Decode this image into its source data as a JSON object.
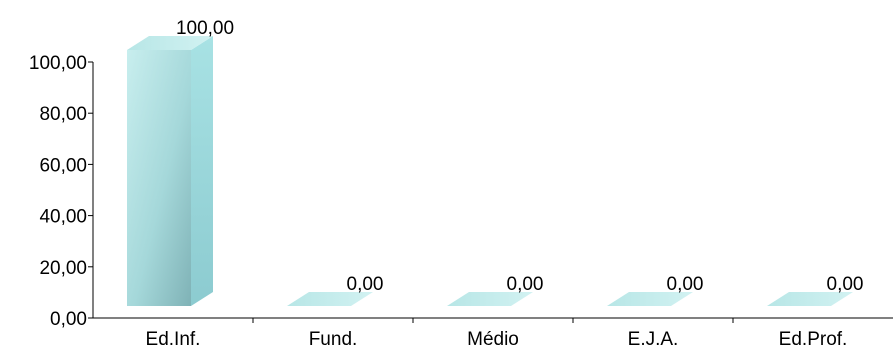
{
  "chart_data": {
    "type": "bar",
    "categories": [
      "Ed.Inf.",
      "Fund.",
      "Médio",
      "E.J.A.",
      "Ed.Prof."
    ],
    "values": [
      100,
      0,
      0,
      0,
      0
    ],
    "value_labels": [
      "100,00",
      "0,00",
      "0,00",
      "0,00",
      "0,00"
    ],
    "ylim": [
      0,
      100
    ],
    "y_ticks": [
      0,
      20,
      40,
      60,
      80,
      100
    ],
    "y_tick_labels": [
      "0,00",
      "20,00",
      "40,00",
      "60,00",
      "80,00",
      "100,00"
    ],
    "title": "",
    "xlabel": "",
    "ylabel": "",
    "grid": false,
    "legend": "none",
    "style": "3d-bar",
    "colors": {
      "bar_front": "#a9dcdc",
      "bar_front_dark": "#7fb4b8",
      "bar_top": "#c6ecec",
      "bar_side": "#95cfd1",
      "axis": "#000000"
    }
  }
}
